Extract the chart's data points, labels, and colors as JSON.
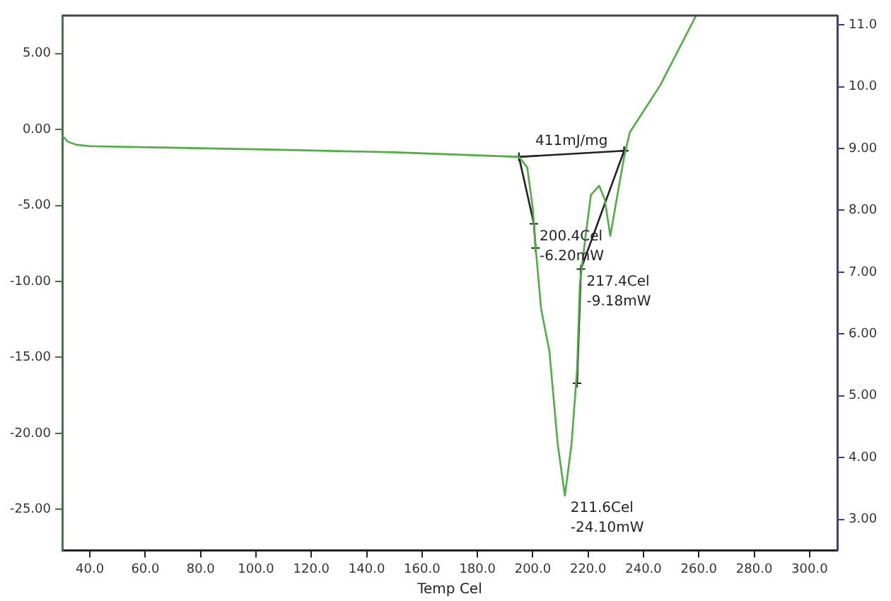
{
  "chart_data": {
    "type": "line",
    "xlabel": "Temp Cel",
    "xlim": [
      30,
      310
    ],
    "xticks": [
      {
        "value": 40,
        "label": "40.0"
      },
      {
        "value": 60,
        "label": "60.0"
      },
      {
        "value": 80,
        "label": "80.0"
      },
      {
        "value": 100,
        "label": "100.0"
      },
      {
        "value": 120,
        "label": "120.0"
      },
      {
        "value": 140,
        "label": "140.0"
      },
      {
        "value": 160,
        "label": "160.0"
      },
      {
        "value": 180,
        "label": "180.0"
      },
      {
        "value": 200,
        "label": "200.0"
      },
      {
        "value": 220,
        "label": "220.0"
      },
      {
        "value": 240,
        "label": "240.0"
      },
      {
        "value": 260,
        "label": "260.0"
      },
      {
        "value": 280,
        "label": "280.0"
      },
      {
        "value": 300,
        "label": "300.0"
      }
    ],
    "ylim": [
      -27.7,
      7.5
    ],
    "yticks": [
      {
        "value": -25,
        "label": "-25.00"
      },
      {
        "value": -20,
        "label": "-20.00"
      },
      {
        "value": -15,
        "label": "-15.00"
      },
      {
        "value": -10,
        "label": "-10.00"
      },
      {
        "value": -5,
        "label": "-5.00"
      },
      {
        "value": 0,
        "label": "0.00"
      },
      {
        "value": 5,
        "label": "5.00"
      }
    ],
    "y2lim": [
      2.5,
      11.15
    ],
    "y2ticks": [
      {
        "value": 3,
        "label": "3.00"
      },
      {
        "value": 4,
        "label": "4.00"
      },
      {
        "value": 5,
        "label": "5.00"
      },
      {
        "value": 6,
        "label": "6.00"
      },
      {
        "value": 7,
        "label": "7.00"
      },
      {
        "value": 8,
        "label": "8.00"
      },
      {
        "value": 9,
        "label": "9.00"
      },
      {
        "value": 10,
        "label": "10.0"
      },
      {
        "value": 11,
        "label": "11.0"
      }
    ],
    "grid": false,
    "legend": false,
    "marker": "none",
    "series": [
      {
        "color": "#4caf3f",
        "x": [
          30,
          32,
          35,
          40,
          100,
          150,
          195,
          198,
          200,
          201,
          203,
          206,
          209,
          211.6,
          214,
          216,
          217,
          219,
          221,
          224,
          226,
          228,
          230,
          233,
          235,
          246,
          259
        ],
        "values": [
          -0.4,
          -0.8,
          -1.0,
          -1.1,
          -1.3,
          -1.5,
          -1.8,
          -2.5,
          -5.2,
          -7.7,
          -11.8,
          -14.6,
          -20.7,
          -24.1,
          -20.7,
          -15.8,
          -10.2,
          -7.1,
          -4.3,
          -3.7,
          -4.6,
          -7.0,
          -4.9,
          -1.8,
          -0.2,
          2.9,
          7.5
        ]
      },
      {
        "color": "#222222",
        "marker": "cross",
        "x": [
          195,
          233,
          null,
          195,
          200.4,
          201,
          null,
          233,
          217.4,
          216
        ],
        "values": [
          -1.8,
          -1.4,
          null,
          -1.8,
          -6.2,
          -7.8,
          null,
          -1.4,
          -9.18,
          -16.7
        ]
      }
    ],
    "annotations": [
      {
        "text": "411mJ/mg",
        "x": 214,
        "y": -1.6
      },
      {
        "text": "200.4Cel\n-6.20mW",
        "x": 200.4,
        "y": -6.2
      },
      {
        "text": "217.4Cel\n-9.18mW",
        "x": 217.4,
        "y": -9.18
      },
      {
        "text": "211.6Cel\n-24.10mW",
        "x": 211.6,
        "y": -24.1
      }
    ]
  }
}
